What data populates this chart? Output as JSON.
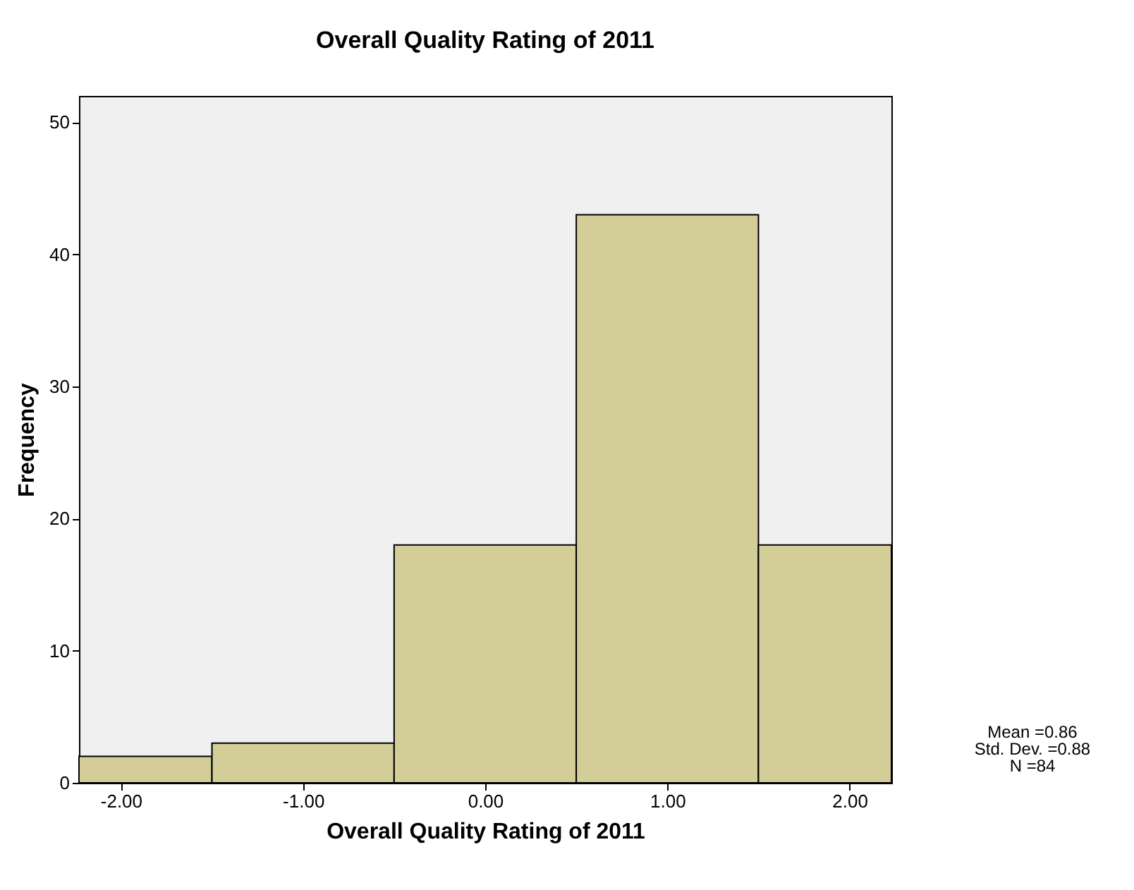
{
  "chart_data": {
    "type": "histogram",
    "title": "Overall Quality Rating of 2011",
    "xlabel": "Overall Quality Rating of 2011",
    "ylabel": "Frequency",
    "bins": [
      -2.23,
      -1.5,
      -0.5,
      0.5,
      1.5,
      2.23
    ],
    "values": [
      2,
      3,
      18,
      43,
      18
    ],
    "color": "#d3ce97",
    "xlim": [
      -2.23,
      2.23
    ],
    "xticks": [
      {
        "value": -2,
        "label": "-2.00"
      },
      {
        "value": -1,
        "label": "-1.00"
      },
      {
        "value": 0,
        "label": "0.00"
      },
      {
        "value": 1,
        "label": "1.00"
      },
      {
        "value": 2,
        "label": "2.00"
      }
    ],
    "ylim": [
      0,
      52
    ],
    "yticks": [
      0,
      10,
      20,
      30,
      40,
      50
    ],
    "grid": false,
    "annotations": [
      "Mean =0.86",
      "Std. Dev. =0.88",
      "N =84"
    ]
  }
}
